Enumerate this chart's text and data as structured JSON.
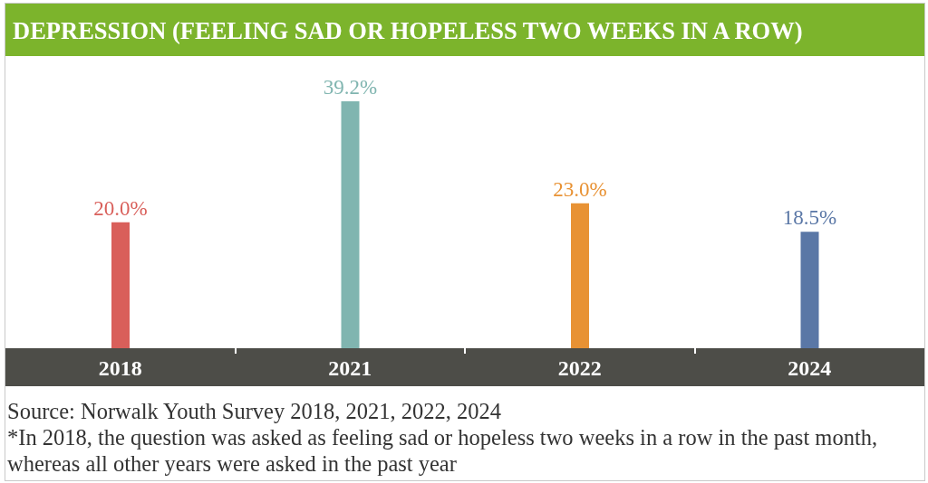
{
  "chart_data": {
    "type": "bar",
    "title": "DEPRESSION (FEELING SAD OR HOPELESS TWO WEEKS IN A ROW)",
    "categories": [
      "2018",
      "2021",
      "2022",
      "2024"
    ],
    "values": [
      20.0,
      39.2,
      23.0,
      18.5
    ],
    "colors": [
      "#d95f5a",
      "#80b5b0",
      "#e89234",
      "#5a77a6"
    ],
    "value_labels": [
      "20.0%",
      "39.2%",
      "23.0%",
      "18.5%"
    ],
    "annotations": [
      "Source: Norwalk Youth Survey 2018, 2021, 2022, 2024",
      "*In 2018, the question was asked as feeling sad or hopeless two weeks in a row in the past month, whereas all other years were asked in the past year"
    ]
  }
}
